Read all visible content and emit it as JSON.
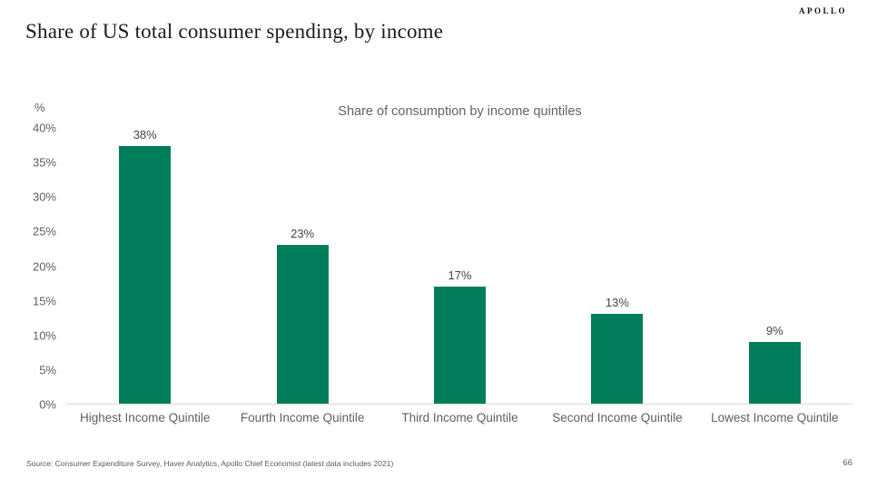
{
  "slide": {
    "title": "Share of US total consumer spending, by income",
    "logo": "APOLLO",
    "source": "Source: Consumer Expenditure Survey, Haver Analytics, Apollo Chief Economist (latest data includes 2021)",
    "page_number": "66"
  },
  "chart_data": {
    "type": "bar",
    "title": "Share of consumption by income quintiles",
    "categories": [
      "Highest Income Quintile",
      "Fourth Income Quintile",
      "Third Income Quintile",
      "Second Income Quintile",
      "Lowest Income Quintile"
    ],
    "values": [
      38,
      23,
      17,
      13,
      9
    ],
    "data_labels": [
      "38%",
      "23%",
      "17%",
      "13%",
      "9%"
    ],
    "xlabel": "",
    "ylabel": "%",
    "ylim": [
      0,
      40
    ],
    "y_ticks": [
      40,
      35,
      30,
      25,
      20,
      15,
      10,
      5,
      0
    ],
    "y_tick_labels": [
      "40%",
      "35%",
      "30%",
      "25%",
      "20%",
      "15%",
      "10%",
      "5%",
      "0%"
    ],
    "grid": false,
    "legend_position": "none",
    "bar_color": "#007e5c",
    "axis_line_color": "#d9d9d9",
    "axis_text_color": "#5f5f5f",
    "data_label_color": "#454545"
  }
}
